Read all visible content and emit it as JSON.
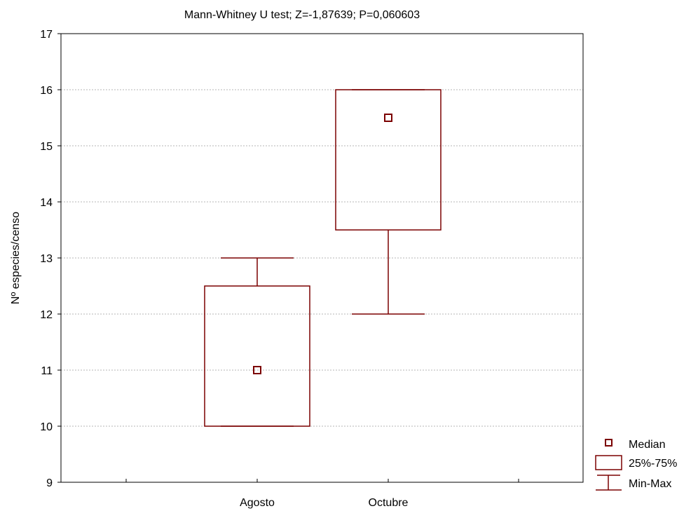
{
  "chart_data": {
    "type": "boxplot",
    "title": "Mann-Whitney U test; Z=-1,87639; P=0,060603",
    "xlabel": "",
    "ylabel": "Nº especies/censo",
    "ylim": [
      9,
      17
    ],
    "yticks": [
      9,
      10,
      11,
      12,
      13,
      14,
      15,
      16,
      17
    ],
    "grid": true,
    "categories": [
      "Agosto",
      "Octubre"
    ],
    "boxes": [
      {
        "category": "Agosto",
        "median": 11,
        "q1": 10,
        "q3": 12.5,
        "min": 10,
        "max": 13
      },
      {
        "category": "Octubre",
        "median": 15.5,
        "q1": 13.5,
        "q3": 16,
        "min": 12,
        "max": 16
      }
    ],
    "legend": {
      "position": "bottom-right",
      "items": [
        {
          "label": "Median",
          "symbol": "square"
        },
        {
          "label": "25%-75%",
          "symbol": "box"
        },
        {
          "label": "Min-Max",
          "symbol": "whisker"
        }
      ]
    },
    "colors": {
      "box": "#7b0000",
      "grid": "#b4b4b4",
      "axis": "#000000"
    }
  }
}
